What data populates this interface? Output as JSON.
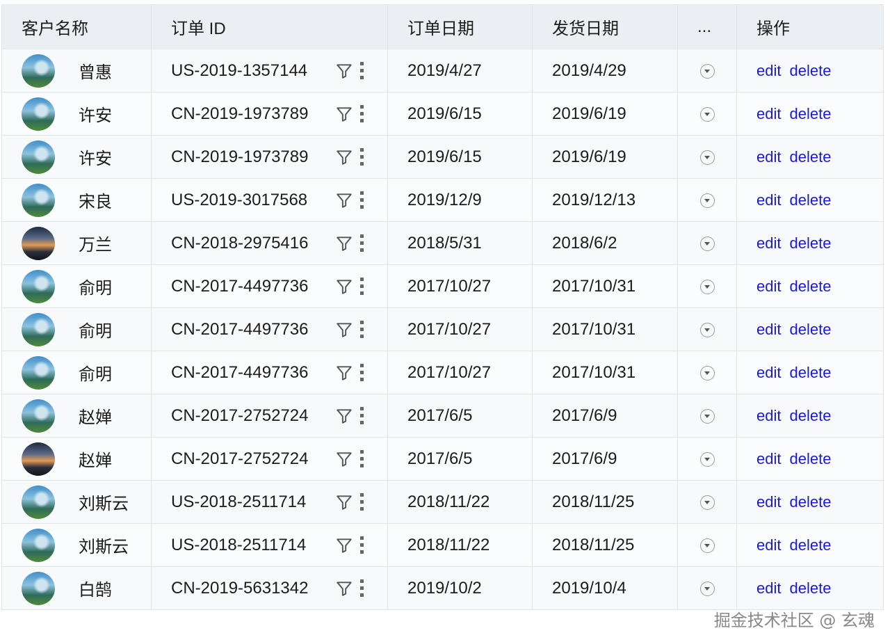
{
  "columns": [
    "客户名称",
    "订单 ID",
    "订单日期",
    "发货日期",
    "...",
    "操作"
  ],
  "actions": {
    "edit": "edit",
    "delete": "delete"
  },
  "watermark": "掘金技术社区 @ 玄魂",
  "rows": [
    {
      "avatar": "landscape",
      "name": "曾惠",
      "id": "US-2019-1357144",
      "order_date": "2019/4/27",
      "ship_date": "2019/4/29"
    },
    {
      "avatar": "landscape",
      "name": "许安",
      "id": "CN-2019-1973789",
      "order_date": "2019/6/15",
      "ship_date": "2019/6/19"
    },
    {
      "avatar": "landscape",
      "name": "许安",
      "id": "CN-2019-1973789",
      "order_date": "2019/6/15",
      "ship_date": "2019/6/19"
    },
    {
      "avatar": "landscape",
      "name": "宋良",
      "id": "US-2019-3017568",
      "order_date": "2019/12/9",
      "ship_date": "2019/12/13"
    },
    {
      "avatar": "sunset",
      "name": "万兰",
      "id": "CN-2018-2975416",
      "order_date": "2018/5/31",
      "ship_date": "2018/6/2"
    },
    {
      "avatar": "landscape",
      "name": "俞明",
      "id": "CN-2017-4497736",
      "order_date": "2017/10/27",
      "ship_date": "2017/10/31"
    },
    {
      "avatar": "landscape",
      "name": "俞明",
      "id": "CN-2017-4497736",
      "order_date": "2017/10/27",
      "ship_date": "2017/10/31"
    },
    {
      "avatar": "landscape",
      "name": "俞明",
      "id": "CN-2017-4497736",
      "order_date": "2017/10/27",
      "ship_date": "2017/10/31"
    },
    {
      "avatar": "landscape",
      "name": "赵婵",
      "id": "CN-2017-2752724",
      "order_date": "2017/6/5",
      "ship_date": "2017/6/9"
    },
    {
      "avatar": "sunset",
      "name": "赵婵",
      "id": "CN-2017-2752724",
      "order_date": "2017/6/5",
      "ship_date": "2017/6/9"
    },
    {
      "avatar": "landscape",
      "name": "刘斯云",
      "id": "US-2018-2511714",
      "order_date": "2018/11/22",
      "ship_date": "2018/11/25"
    },
    {
      "avatar": "landscape",
      "name": "刘斯云",
      "id": "US-2018-2511714",
      "order_date": "2018/11/22",
      "ship_date": "2018/11/25"
    },
    {
      "avatar": "landscape",
      "name": "白鹄",
      "id": "CN-2019-5631342",
      "order_date": "2019/10/2",
      "ship_date": "2019/10/4"
    }
  ]
}
